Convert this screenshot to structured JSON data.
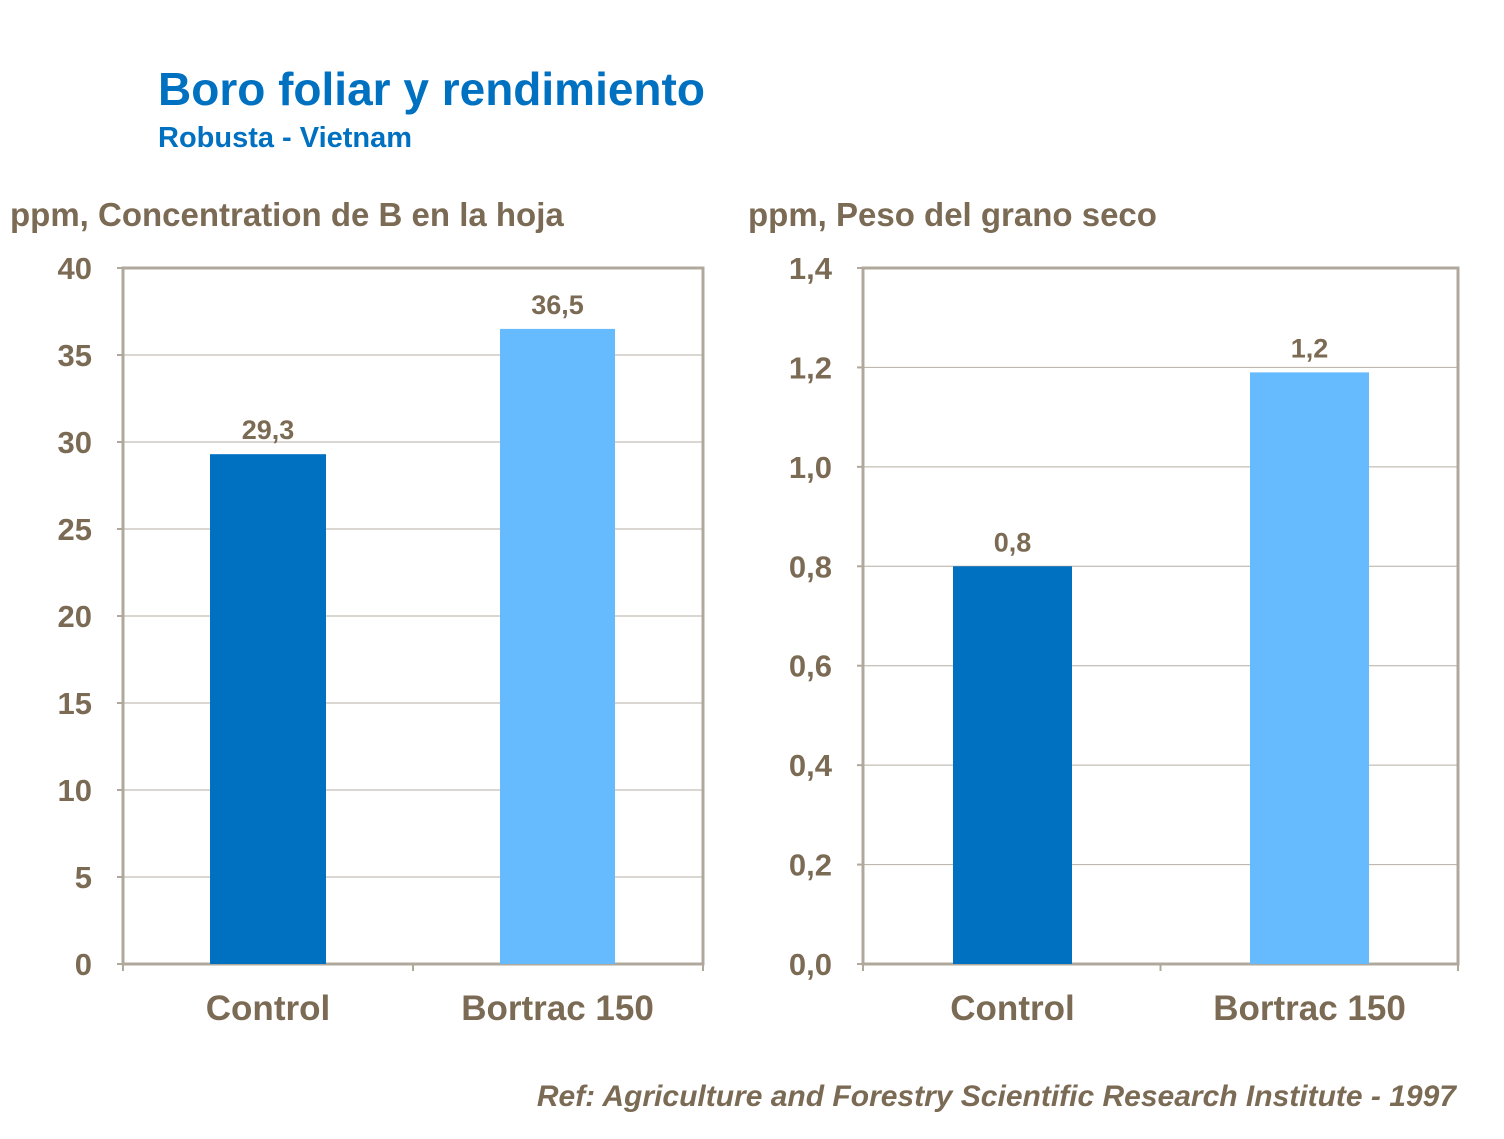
{
  "title": "Boro foliar y rendimiento",
  "subtitle": "Robusta - Vietnam",
  "reference": "Ref: Agriculture and Forestry Scientific Research Institute - 1997",
  "colors": {
    "control": "#0070C0",
    "bortrac": "#66BBFF",
    "text": "#7B6B55",
    "title": "#0070C0"
  },
  "chart_data": [
    {
      "type": "bar",
      "ylabel": "ppm, Concentration de B en la hoja",
      "categories": [
        "Control",
        "Bortrac 150"
      ],
      "values": [
        29.3,
        36.5
      ],
      "data_labels": [
        "29,3",
        "36,5"
      ],
      "ylim": [
        0,
        40
      ],
      "yticks": [
        "0",
        "5",
        "10",
        "15",
        "20",
        "25",
        "30",
        "35",
        "40"
      ],
      "grid": true
    },
    {
      "type": "bar",
      "ylabel": "ppm, Peso del grano seco",
      "categories": [
        "Control",
        "Bortrac 150"
      ],
      "values": [
        0.8,
        1.19
      ],
      "data_labels": [
        "0,8",
        "1,2"
      ],
      "ylim": [
        0,
        1.4
      ],
      "yticks": [
        "0,0",
        "0,2",
        "0,4",
        "0,6",
        "0,8",
        "1,0",
        "1,2",
        "1,4"
      ],
      "grid": true
    }
  ]
}
